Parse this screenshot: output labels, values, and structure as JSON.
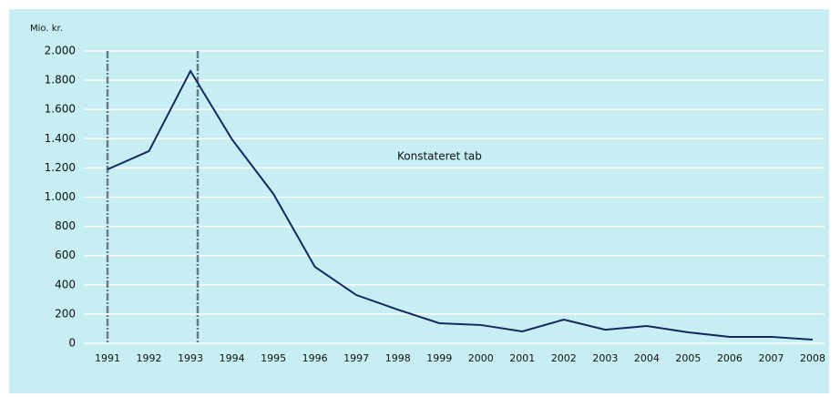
{
  "chart_data": {
    "type": "line",
    "y_label": "Mio. kr.",
    "categories": [
      "1991",
      "1992",
      "1993",
      "1994",
      "1995",
      "1996",
      "1997",
      "1998",
      "1999",
      "2000",
      "2001",
      "2002",
      "2003",
      "2004",
      "2005",
      "2006",
      "2007",
      "2008"
    ],
    "series": [
      {
        "name": "Konstateret tab",
        "color": "#14285e",
        "values": [
          1190,
          1315,
          1863,
          1396,
          1022,
          523,
          330,
          230,
          137,
          125,
          81,
          162,
          93,
          118,
          75,
          44,
          44,
          25
        ]
      }
    ],
    "ylim": [
      0,
      2000
    ],
    "yticks": [
      0,
      200,
      400,
      600,
      800,
      {
        "value": 1000,
        "label": "1.000"
      },
      {
        "value": 1200,
        "label": "1.200"
      },
      {
        "value": 1400,
        "label": "1.400"
      },
      {
        "value": 1600,
        "label": "1.600"
      },
      {
        "value": 1800,
        "label": "1.800"
      },
      {
        "value": 2000,
        "label": "2.000"
      }
    ],
    "grid": true
  }
}
